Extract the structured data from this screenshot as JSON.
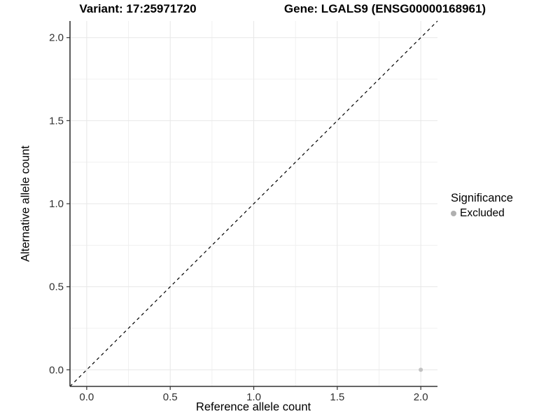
{
  "chart_data": {
    "type": "scatter",
    "title_left": "Variant: 17:25971720",
    "title_right": "Gene: LGALS9 (ENSG00000168961)",
    "xlabel": "Reference allele count",
    "ylabel": "Alternative allele count",
    "xlim": [
      -0.1,
      2.1
    ],
    "ylim": [
      -0.1,
      2.1
    ],
    "x_ticks": {
      "values": [
        0,
        0.5,
        1,
        1.5,
        2
      ],
      "labels": [
        "0.0",
        "0.5",
        "1.0",
        "1.5",
        "2.0"
      ]
    },
    "y_ticks": {
      "values": [
        0,
        0.5,
        1,
        1.5,
        2
      ],
      "labels": [
        "0.0",
        "0.5",
        "1.0",
        "1.5",
        "2.0"
      ]
    },
    "minor_tick_values": [
      0.25,
      0.75,
      1.25,
      1.75
    ],
    "grid": true,
    "reference_line": {
      "type": "identity",
      "style": "dashed",
      "color": "#000000"
    },
    "points": [
      {
        "x": 2,
        "y": 0,
        "series": "Excluded",
        "color": "#c2c2c2"
      }
    ],
    "legend": {
      "title": "Significance",
      "position": "right",
      "items": [
        {
          "label": "Excluded",
          "color": "#b0b0b0"
        }
      ]
    },
    "colors": {
      "axis_line": "#333333",
      "tick_mark": "#333333",
      "tick_label": "#303030",
      "grid_major": "#e7e7e7",
      "grid_minor": "#f0f0f0",
      "background": "#ffffff"
    }
  }
}
